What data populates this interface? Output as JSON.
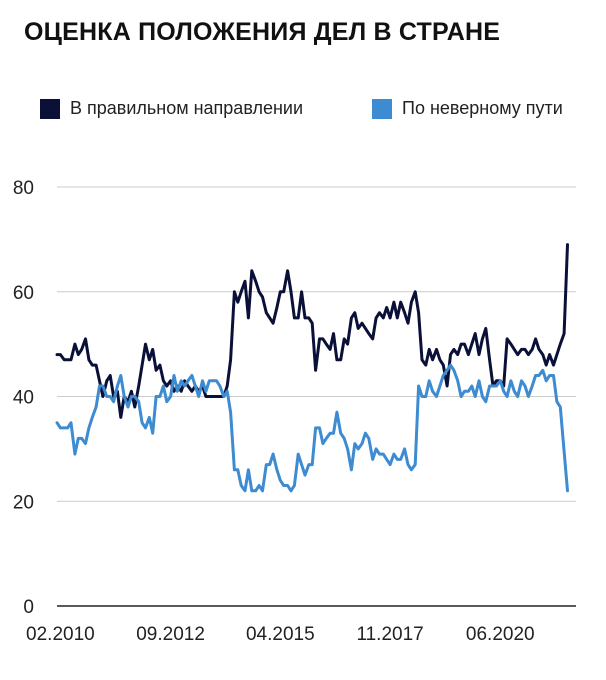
{
  "chart_data": {
    "type": "line",
    "title": "ОЦЕНКА ПОЛОЖЕНИЯ ДЕЛ В СТРАНЕ",
    "xlabel": "",
    "ylabel": "",
    "ylim": [
      0,
      80
    ],
    "yticks": [
      0,
      20,
      40,
      60,
      80
    ],
    "x_tick_labels": [
      "02.2010",
      "09.2012",
      "04.2015",
      "11.2017",
      "06.2020"
    ],
    "x_tick_values": [
      2010.08,
      2012.67,
      2015.25,
      2017.83,
      2020.42
    ],
    "xlim": [
      2010.0,
      2022.2
    ],
    "grid": true,
    "legend_position": "top",
    "series": [
      {
        "name": "В правильном направлении",
        "color": "#0b1038",
        "points": [
          [
            2010.0,
            48
          ],
          [
            2010.08,
            48
          ],
          [
            2010.17,
            47
          ],
          [
            2010.33,
            47
          ],
          [
            2010.42,
            50
          ],
          [
            2010.5,
            48
          ],
          [
            2010.58,
            49
          ],
          [
            2010.67,
            51
          ],
          [
            2010.75,
            47
          ],
          [
            2010.83,
            46
          ],
          [
            2010.92,
            46
          ],
          [
            2011.0,
            43
          ],
          [
            2011.08,
            40
          ],
          [
            2011.17,
            43
          ],
          [
            2011.25,
            44
          ],
          [
            2011.33,
            40
          ],
          [
            2011.42,
            41
          ],
          [
            2011.5,
            36
          ],
          [
            2011.58,
            40
          ],
          [
            2011.67,
            39
          ],
          [
            2011.75,
            41
          ],
          [
            2011.83,
            38
          ],
          [
            2011.92,
            42
          ],
          [
            2012.0,
            46
          ],
          [
            2012.08,
            50
          ],
          [
            2012.17,
            47
          ],
          [
            2012.25,
            49
          ],
          [
            2012.33,
            45
          ],
          [
            2012.42,
            46
          ],
          [
            2012.5,
            43
          ],
          [
            2012.58,
            42
          ],
          [
            2012.67,
            43
          ],
          [
            2012.75,
            41
          ],
          [
            2012.83,
            42
          ],
          [
            2012.92,
            41
          ],
          [
            2013.0,
            43
          ],
          [
            2013.08,
            42
          ],
          [
            2013.17,
            41
          ],
          [
            2013.25,
            42
          ],
          [
            2013.33,
            41
          ],
          [
            2013.42,
            42
          ],
          [
            2013.5,
            40
          ],
          [
            2013.58,
            40
          ],
          [
            2013.67,
            40
          ],
          [
            2013.75,
            40
          ],
          [
            2013.83,
            40
          ],
          [
            2013.92,
            40
          ],
          [
            2014.0,
            42
          ],
          [
            2014.08,
            47
          ],
          [
            2014.17,
            60
          ],
          [
            2014.25,
            58
          ],
          [
            2014.33,
            60
          ],
          [
            2014.42,
            62
          ],
          [
            2014.5,
            55
          ],
          [
            2014.58,
            64
          ],
          [
            2014.67,
            62
          ],
          [
            2014.75,
            60
          ],
          [
            2014.83,
            59
          ],
          [
            2014.92,
            56
          ],
          [
            2015.0,
            55
          ],
          [
            2015.08,
            54
          ],
          [
            2015.17,
            57
          ],
          [
            2015.25,
            60
          ],
          [
            2015.33,
            60
          ],
          [
            2015.42,
            64
          ],
          [
            2015.5,
            60
          ],
          [
            2015.58,
            55
          ],
          [
            2015.67,
            55
          ],
          [
            2015.75,
            60
          ],
          [
            2015.83,
            55
          ],
          [
            2015.92,
            55
          ],
          [
            2016.0,
            54
          ],
          [
            2016.08,
            45
          ],
          [
            2016.17,
            51
          ],
          [
            2016.25,
            51
          ],
          [
            2016.33,
            50
          ],
          [
            2016.42,
            49
          ],
          [
            2016.5,
            52
          ],
          [
            2016.58,
            47
          ],
          [
            2016.67,
            47
          ],
          [
            2016.75,
            51
          ],
          [
            2016.83,
            50
          ],
          [
            2016.92,
            55
          ],
          [
            2017.0,
            56
          ],
          [
            2017.08,
            53
          ],
          [
            2017.17,
            54
          ],
          [
            2017.25,
            53
          ],
          [
            2017.33,
            52
          ],
          [
            2017.42,
            51
          ],
          [
            2017.5,
            55
          ],
          [
            2017.58,
            56
          ],
          [
            2017.67,
            55
          ],
          [
            2017.75,
            57
          ],
          [
            2017.83,
            55
          ],
          [
            2017.92,
            58
          ],
          [
            2018.0,
            55
          ],
          [
            2018.08,
            58
          ],
          [
            2018.17,
            56
          ],
          [
            2018.25,
            54
          ],
          [
            2018.33,
            58
          ],
          [
            2018.42,
            60
          ],
          [
            2018.5,
            56
          ],
          [
            2018.58,
            47
          ],
          [
            2018.67,
            46
          ],
          [
            2018.75,
            49
          ],
          [
            2018.83,
            47
          ],
          [
            2018.92,
            49
          ],
          [
            2019.0,
            47
          ],
          [
            2019.08,
            46
          ],
          [
            2019.17,
            42
          ],
          [
            2019.25,
            48
          ],
          [
            2019.33,
            49
          ],
          [
            2019.42,
            48
          ],
          [
            2019.5,
            50
          ],
          [
            2019.58,
            50
          ],
          [
            2019.67,
            48
          ],
          [
            2019.75,
            50
          ],
          [
            2019.83,
            52
          ],
          [
            2019.92,
            48
          ],
          [
            2020.0,
            51
          ],
          [
            2020.08,
            53
          ],
          [
            2020.17,
            47
          ],
          [
            2020.25,
            42
          ],
          [
            2020.33,
            43
          ],
          [
            2020.42,
            43
          ],
          [
            2020.5,
            42
          ],
          [
            2020.58,
            51
          ],
          [
            2020.67,
            50
          ],
          [
            2020.75,
            49
          ],
          [
            2020.83,
            48
          ],
          [
            2020.92,
            49
          ],
          [
            2021.0,
            49
          ],
          [
            2021.08,
            48
          ],
          [
            2021.17,
            49
          ],
          [
            2021.25,
            51
          ],
          [
            2021.33,
            49
          ],
          [
            2021.42,
            48
          ],
          [
            2021.5,
            46
          ],
          [
            2021.58,
            48
          ],
          [
            2021.67,
            46
          ],
          [
            2021.75,
            48
          ],
          [
            2021.83,
            50
          ],
          [
            2021.92,
            52
          ],
          [
            2022.0,
            69
          ]
        ]
      },
      {
        "name": "По неверному пути",
        "color": "#3d8bd0",
        "points": [
          [
            2010.0,
            35
          ],
          [
            2010.08,
            34
          ],
          [
            2010.17,
            34
          ],
          [
            2010.25,
            34
          ],
          [
            2010.33,
            35
          ],
          [
            2010.42,
            29
          ],
          [
            2010.5,
            32
          ],
          [
            2010.58,
            32
          ],
          [
            2010.67,
            31
          ],
          [
            2010.75,
            34
          ],
          [
            2010.83,
            36
          ],
          [
            2010.92,
            38
          ],
          [
            2011.0,
            42
          ],
          [
            2011.08,
            42
          ],
          [
            2011.17,
            40
          ],
          [
            2011.25,
            40
          ],
          [
            2011.33,
            39
          ],
          [
            2011.42,
            42
          ],
          [
            2011.5,
            44
          ],
          [
            2011.58,
            40
          ],
          [
            2011.67,
            38
          ],
          [
            2011.75,
            40
          ],
          [
            2011.83,
            40
          ],
          [
            2011.92,
            39
          ],
          [
            2012.0,
            35
          ],
          [
            2012.08,
            34
          ],
          [
            2012.17,
            36
          ],
          [
            2012.25,
            33
          ],
          [
            2012.33,
            40
          ],
          [
            2012.42,
            40
          ],
          [
            2012.5,
            42
          ],
          [
            2012.58,
            39
          ],
          [
            2012.67,
            40
          ],
          [
            2012.75,
            44
          ],
          [
            2012.83,
            41
          ],
          [
            2012.92,
            43
          ],
          [
            2013.0,
            42
          ],
          [
            2013.08,
            43
          ],
          [
            2013.17,
            44
          ],
          [
            2013.25,
            42
          ],
          [
            2013.33,
            40
          ],
          [
            2013.42,
            43
          ],
          [
            2013.5,
            41
          ],
          [
            2013.58,
            43
          ],
          [
            2013.67,
            43
          ],
          [
            2013.75,
            43
          ],
          [
            2013.83,
            42
          ],
          [
            2013.92,
            40
          ],
          [
            2014.0,
            41
          ],
          [
            2014.08,
            37
          ],
          [
            2014.17,
            26
          ],
          [
            2014.25,
            26
          ],
          [
            2014.33,
            23
          ],
          [
            2014.42,
            22
          ],
          [
            2014.5,
            26
          ],
          [
            2014.58,
            22
          ],
          [
            2014.67,
            22
          ],
          [
            2014.75,
            23
          ],
          [
            2014.83,
            22
          ],
          [
            2014.92,
            27
          ],
          [
            2015.0,
            27
          ],
          [
            2015.08,
            29
          ],
          [
            2015.17,
            26
          ],
          [
            2015.25,
            24
          ],
          [
            2015.33,
            23
          ],
          [
            2015.42,
            23
          ],
          [
            2015.5,
            22
          ],
          [
            2015.58,
            23
          ],
          [
            2015.67,
            29
          ],
          [
            2015.75,
            27
          ],
          [
            2015.83,
            25
          ],
          [
            2015.92,
            27
          ],
          [
            2016.0,
            27
          ],
          [
            2016.08,
            34
          ],
          [
            2016.17,
            34
          ],
          [
            2016.25,
            31
          ],
          [
            2016.33,
            32
          ],
          [
            2016.42,
            33
          ],
          [
            2016.5,
            33
          ],
          [
            2016.58,
            37
          ],
          [
            2016.67,
            33
          ],
          [
            2016.75,
            32
          ],
          [
            2016.83,
            30
          ],
          [
            2016.92,
            26
          ],
          [
            2017.0,
            31
          ],
          [
            2017.08,
            30
          ],
          [
            2017.17,
            31
          ],
          [
            2017.25,
            33
          ],
          [
            2017.33,
            32
          ],
          [
            2017.42,
            28
          ],
          [
            2017.5,
            30
          ],
          [
            2017.58,
            29
          ],
          [
            2017.67,
            29
          ],
          [
            2017.75,
            28
          ],
          [
            2017.83,
            27
          ],
          [
            2017.92,
            29
          ],
          [
            2018.0,
            28
          ],
          [
            2018.08,
            28
          ],
          [
            2018.17,
            30
          ],
          [
            2018.25,
            27
          ],
          [
            2018.33,
            26
          ],
          [
            2018.42,
            27
          ],
          [
            2018.5,
            42
          ],
          [
            2018.58,
            40
          ],
          [
            2018.67,
            40
          ],
          [
            2018.75,
            43
          ],
          [
            2018.83,
            41
          ],
          [
            2018.92,
            40
          ],
          [
            2019.0,
            42
          ],
          [
            2019.08,
            44
          ],
          [
            2019.17,
            45
          ],
          [
            2019.25,
            46
          ],
          [
            2019.33,
            45
          ],
          [
            2019.42,
            43
          ],
          [
            2019.5,
            40
          ],
          [
            2019.58,
            41
          ],
          [
            2019.67,
            41
          ],
          [
            2019.75,
            42
          ],
          [
            2019.83,
            40
          ],
          [
            2019.92,
            43
          ],
          [
            2020.0,
            40
          ],
          [
            2020.08,
            39
          ],
          [
            2020.17,
            42
          ],
          [
            2020.25,
            42
          ],
          [
            2020.33,
            42
          ],
          [
            2020.42,
            43
          ],
          [
            2020.5,
            41
          ],
          [
            2020.58,
            40
          ],
          [
            2020.67,
            43
          ],
          [
            2020.75,
            41
          ],
          [
            2020.83,
            40
          ],
          [
            2020.92,
            43
          ],
          [
            2021.0,
            42
          ],
          [
            2021.08,
            40
          ],
          [
            2021.17,
            42
          ],
          [
            2021.25,
            44
          ],
          [
            2021.33,
            44
          ],
          [
            2021.42,
            45
          ],
          [
            2021.5,
            43
          ],
          [
            2021.58,
            44
          ],
          [
            2021.67,
            44
          ],
          [
            2021.75,
            39
          ],
          [
            2021.83,
            38
          ],
          [
            2022.0,
            22
          ]
        ]
      }
    ]
  }
}
